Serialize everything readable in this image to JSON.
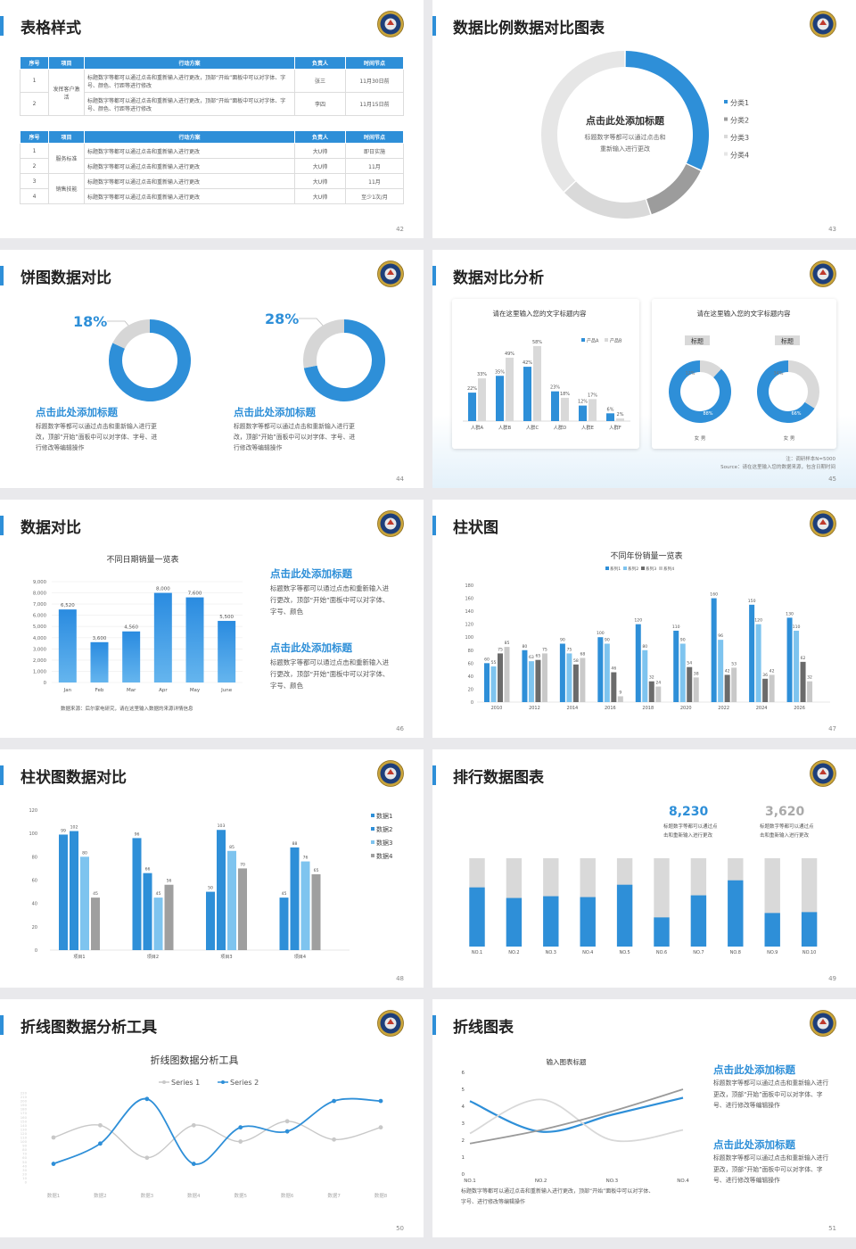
{
  "colors": {
    "accent": "#2e8fd8",
    "light_blue": "#7ec4ef",
    "gray": "#9c9c9c",
    "light_gray": "#d9d9d9"
  },
  "logo_icon": "school-emblem-icon",
  "slides": {
    "s42": {
      "title": "表格样式",
      "page": "42",
      "headers": [
        "序号",
        "项目",
        "行动方案",
        "负责人",
        "时间节点"
      ],
      "table1": {
        "group": "发挥客户激活",
        "rows": [
          {
            "no": "1",
            "plan": "标题数字等都可以通过点击和重新输入进行更改，顶部“开始”面板中可以对字体、字号、颜色、行距等进行修改",
            "owner": "张三",
            "time": "11月30日前"
          },
          {
            "no": "2",
            "plan": "标题数字等都可以通过点击和重新输入进行更改，顶部“开始”面板中可以对字体、字号、颜色、行距等进行修改",
            "owner": "李四",
            "time": "11月15日前"
          }
        ]
      },
      "table2": {
        "group1": "服务标准",
        "group2": "销售技能",
        "rows": [
          {
            "no": "1",
            "plan": "标题数字等都可以通过点击和重新输入进行更改",
            "owner": "大U帅",
            "time": "即日实施"
          },
          {
            "no": "2",
            "plan": "标题数字等都可以通过点击和重新输入进行更改",
            "owner": "大U帅",
            "time": "11月"
          },
          {
            "no": "3",
            "plan": "标题数字等都可以通过点击和重新输入进行更改",
            "owner": "大U帅",
            "time": "11月"
          },
          {
            "no": "4",
            "plan": "标题数字等都可以通过点击和重新输入进行更改",
            "owner": "大U帅",
            "time": "至少1次/月"
          }
        ]
      }
    },
    "s43": {
      "title": "数据比例数据对比图表",
      "page": "43",
      "center_title": "点击此处添加标题",
      "center_line1": "标题数字等都可以通过点击和",
      "center_line2": "重新输入进行更改",
      "chart_data": {
        "type": "pie",
        "categories": [
          "分类1",
          "分类2",
          "分类3",
          "分类4"
        ],
        "values": [
          32,
          13,
          18,
          37
        ]
      }
    },
    "s44": {
      "title": "饼图数据对比",
      "page": "44",
      "items": [
        {
          "percent_label": "18%",
          "heading": "点击此处添加标题",
          "line1": "标题数字等都可以通过点击和重新输入进行更",
          "line2": "改，顶部“开始”面板中可以对字体、字号、进",
          "line3": "行修改等编辑操作"
        },
        {
          "percent_label": "28%",
          "heading": "点击此处添加标题",
          "line1": "标题数字等都可以通过点击和重新输入进行更",
          "line2": "改，顶部“开始”面板中可以对字体、字号、进",
          "line3": "行修改等编辑操作"
        }
      ],
      "chart_data": [
        {
          "type": "pie",
          "categories": [
            "A",
            "B"
          ],
          "values": [
            82,
            18
          ]
        },
        {
          "type": "pie",
          "categories": [
            "A",
            "B"
          ],
          "values": [
            72,
            28
          ]
        }
      ]
    },
    "s45": {
      "title": "数据对比分析",
      "page": "45",
      "card1_title": "请在这里输入您的文字标题内容",
      "card2_title": "请在这里输入您的文字标题内容",
      "donut_tag1": "标题",
      "donut_tag2": "标题",
      "donut_legend1": "女  男",
      "donut_legend2": "女  男",
      "note": "注：调研样本N=5000",
      "source": "Source：请在这里输入您的数据来源，包含日期时间",
      "chart_data": [
        {
          "type": "bar",
          "categories": [
            "人群A",
            "人群B",
            "人群C",
            "人群D",
            "人群E",
            "人群F"
          ],
          "series": [
            {
              "name": "产品A",
              "values": [
                22,
                35,
                42,
                23,
                12,
                6
              ]
            },
            {
              "name": "产品B",
              "values": [
                33,
                49,
                58,
                18,
                17,
                2
              ]
            }
          ],
          "labels": [
            [
              "22%",
              "33%"
            ],
            [
              "35%",
              "49%"
            ],
            [
              "42%",
              "58%"
            ],
            [
              "23%",
              "18%"
            ],
            [
              "12%",
              "17%"
            ],
            [
              "6%",
              "2%"
            ]
          ]
        },
        {
          "type": "pie",
          "categories": [
            "男",
            "女"
          ],
          "values": [
            88,
            12
          ],
          "labels": [
            "88%",
            "12%"
          ]
        },
        {
          "type": "pie",
          "categories": [
            "男",
            "女"
          ],
          "values": [
            66,
            34
          ],
          "labels": [
            "66%",
            "34%"
          ]
        }
      ]
    },
    "s46": {
      "title": "数据对比",
      "page": "46",
      "chart_title": "不同日期销量一览表",
      "source": "数据来源：后尔家电研究，请在这里输入数据的来源详情信息",
      "blocks": [
        {
          "heading": "点击此处添加标题",
          "line1": "标题数字等都可以通过点击和重新输入进",
          "line2": "行更改，顶部“开始”面板中可以对字体、",
          "line3": "字号、颜色"
        },
        {
          "heading": "点击此处添加标题",
          "line1": "标题数字等都可以通过点击和重新输入进",
          "line2": "行更改，顶部“开始”面板中可以对字体、",
          "line3": "字号、颜色"
        }
      ],
      "chart_data": {
        "type": "bar",
        "categories": [
          "Jan",
          "Feb",
          "Mar",
          "Apr",
          "May",
          "June"
        ],
        "values": [
          6520,
          3600,
          4560,
          8000,
          7600,
          5500
        ],
        "value_labels": [
          "6,520",
          "3,600",
          "4,560",
          "8,000",
          "7,600",
          "5,500"
        ],
        "yticks": [
          "0",
          "1,000",
          "2,000",
          "3,000",
          "4,000",
          "5,000",
          "6,000",
          "7,000",
          "8,000",
          "9,000"
        ],
        "ylim": [
          0,
          9000
        ]
      }
    },
    "s47": {
      "title": "柱状图",
      "page": "47",
      "chart_title": "不同年份销量一览表",
      "chart_data": {
        "type": "bar",
        "categories": [
          "2010",
          "2012",
          "2014",
          "2016",
          "2018",
          "2020",
          "2022",
          "2024",
          "2026"
        ],
        "series": [
          {
            "name": "系列1",
            "values": [
              60,
              80,
              90,
              100,
              120,
              110,
              160,
              150,
              130
            ]
          },
          {
            "name": "系列2",
            "values": [
              55,
              63,
              75,
              90,
              80,
              90,
              96,
              120,
              110
            ]
          },
          {
            "name": "系列3",
            "values": [
              75,
              65,
              58,
              46,
              32,
              54,
              42,
              36,
              62
            ]
          },
          {
            "name": "系列4",
            "values": [
              85,
              75,
              68,
              9,
              24,
              38,
              53,
              42,
              32
            ]
          }
        ],
        "yticks": [
          "0",
          "20",
          "40",
          "60",
          "80",
          "100",
          "120",
          "140",
          "160",
          "180"
        ],
        "ylim": [
          0,
          180
        ]
      }
    },
    "s48": {
      "title": "柱状图数据对比",
      "page": "48",
      "chart_data": {
        "type": "bar",
        "categories": [
          "项目1",
          "项目2",
          "项目3",
          "项目4"
        ],
        "series": [
          {
            "name": "数据1",
            "values": [
              99,
              96,
              50,
              45
            ]
          },
          {
            "name": "数据2",
            "values": [
              102,
              66,
              103,
              88
            ]
          },
          {
            "name": "数据3",
            "values": [
              80,
              45,
              85,
              76
            ]
          },
          {
            "name": "数据4",
            "values": [
              45,
              56,
              70,
              65
            ]
          }
        ],
        "yticks": [
          "0",
          "20",
          "40",
          "60",
          "80",
          "100",
          "120"
        ],
        "ylim": [
          0,
          120
        ]
      }
    },
    "s49": {
      "title": "排行数据图表",
      "page": "49",
      "stat1": {
        "value": "8,230",
        "line1": "标题数字等都可以通过点",
        "line2": "击和重新输入进行更改"
      },
      "stat2": {
        "value": "3,620",
        "line1": "标题数字等都可以通过点",
        "line2": "击和重新输入进行更改"
      },
      "chart_data": {
        "type": "bar",
        "categories": [
          "NO.1",
          "NO.2",
          "NO.3",
          "NO.4",
          "NO.5",
          "NO.6",
          "NO.7",
          "NO.8",
          "NO.9",
          "NO.10"
        ],
        "values": [
          67,
          55,
          57,
          56,
          70,
          33,
          58,
          75,
          38,
          39
        ]
      }
    },
    "s50": {
      "title": "折线图数据分析工具",
      "page": "50",
      "chart_title": "折线图数据分析工具",
      "chart_data": {
        "type": "line",
        "categories": [
          "数据1",
          "数据2",
          "数据3",
          "数据4",
          "数据5",
          "数据6",
          "数据7",
          "数据8"
        ],
        "series": [
          {
            "name": "Series 1",
            "values": [
              110,
              140,
              60,
              140,
              100,
              150,
              105,
              135
            ]
          },
          {
            "name": "Series 2",
            "values": [
              45,
              95,
              205,
              45,
              135,
              125,
              200,
              200
            ]
          }
        ]
      }
    },
    "s51": {
      "title": "折线图表",
      "page": "51",
      "chart_title": "输入图表标题",
      "bottom_line1": "标题数字等都可以通过点击和重新输入进行更改，顶部“开始”面板中可以对字体、",
      "bottom_line2": "字号、进行修改等编辑操作",
      "blocks": [
        {
          "heading": "点击此处添加标题",
          "line1": "标题数字等都可以通过点击和重新输入进行",
          "line2": "更改，顶部“开始”面板中可以对字体、字",
          "line3": "号、进行修改等编辑操作"
        },
        {
          "heading": "点击此处添加标题",
          "line1": "标题数字等都可以通过点击和重新输入进行",
          "line2": "更改，顶部“开始”面板中可以对字体、字",
          "line3": "号、进行修改等编辑操作"
        }
      ],
      "chart_data": {
        "type": "line",
        "categories": [
          "NO.1",
          "NO.2",
          "NO.3",
          "NO.4"
        ],
        "yticks": [
          "0",
          "1",
          "2",
          "3",
          "4",
          "5",
          "6"
        ],
        "ylim": [
          0,
          6
        ],
        "series": [
          {
            "name": "",
            "values": [
              4.3,
              2.5,
              3.5,
              4.5
            ]
          },
          {
            "name": "",
            "values": [
              2.4,
              4.4,
              2.0,
              2.6
            ]
          },
          {
            "name": "",
            "values": [
              1.8,
              2.6,
              3.7,
              5.0
            ]
          }
        ]
      }
    }
  }
}
